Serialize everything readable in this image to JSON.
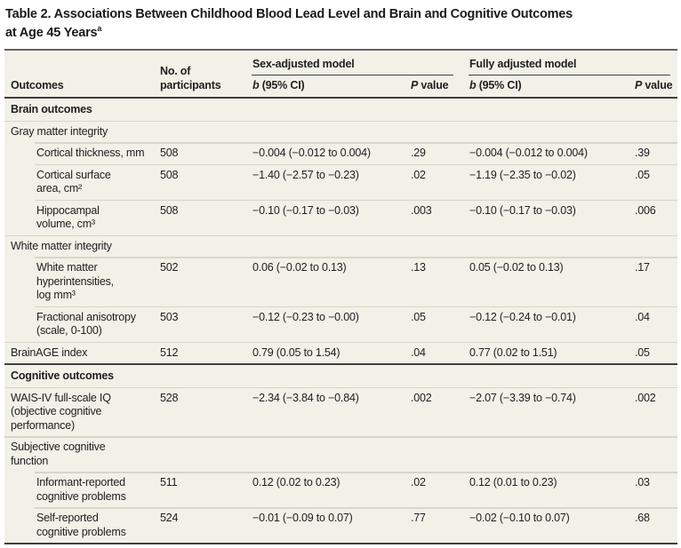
{
  "title": {
    "line1": "Table 2. Associations Between Childhood Blood Lead Level and Brain and Cognitive Outcomes",
    "line2": "at Age 45 Years",
    "superscript": "a"
  },
  "colors": {
    "table_background": "#f2f1e8",
    "dark_rule": "#3f3f3f",
    "top_rule": "#636363",
    "light_rule": "#d7d6cd",
    "text": "#202020"
  },
  "header": {
    "outcomes": "Outcomes",
    "participants": "No. of\nparticipants",
    "group1": "Sex-adjusted model",
    "group2": "Fully adjusted model",
    "b_italic": "b",
    "b_rest": " (95% CI)",
    "p_italic": "P",
    "p_rest": " value"
  },
  "rows": [
    {
      "type": "section",
      "label": "Brain outcomes"
    },
    {
      "type": "subsection",
      "label": "Gray matter integrity"
    },
    {
      "type": "data",
      "indent": true,
      "label": "Cortical thickness, mm",
      "n": "508",
      "b1": "−0.004 (−0.012 to 0.004)",
      "p1": ".29",
      "b2": "−0.004 (−0.012 to 0.004)",
      "p2": ".39"
    },
    {
      "type": "data",
      "indent": true,
      "label": "Cortical surface\narea, cm²",
      "n": "508",
      "b1": "−1.40 (−2.57 to −0.23)",
      "p1": ".02",
      "b2": "−1.19 (−2.35 to −0.02)",
      "p2": ".05"
    },
    {
      "type": "data",
      "indent": true,
      "label": "Hippocampal\nvolume, cm³",
      "n": "508",
      "b1": "−0.10 (−0.17 to −0.03)",
      "p1": ".003",
      "b2": "−0.10 (−0.17 to −0.03)",
      "p2": ".006"
    },
    {
      "type": "subsection",
      "label": "White matter integrity"
    },
    {
      "type": "data",
      "indent": true,
      "label": "White matter\nhyperintensities,\nlog mm³",
      "n": "502",
      "b1": "0.06 (−0.02 to 0.13)",
      "p1": ".13",
      "b2": "0.05 (−0.02 to 0.13)",
      "p2": ".17"
    },
    {
      "type": "data",
      "indent": true,
      "label": "Fractional anisotropy\n(scale, 0-100)",
      "n": "503",
      "b1": "−0.12 (−0.23 to −0.00)",
      "p1": ".05",
      "b2": "−0.12 (−0.24 to −0.01)",
      "p2": ".04"
    },
    {
      "type": "data",
      "indent": false,
      "label": "BrainAGE index",
      "n": "512",
      "b1": "0.79 (0.05 to 1.54)",
      "p1": ".04",
      "b2": "0.77 (0.02 to 1.51)",
      "p2": ".05"
    },
    {
      "type": "section",
      "label": "Cognitive outcomes",
      "divider_above": true
    },
    {
      "type": "data",
      "indent": false,
      "label": "WAIS-IV full-scale IQ\n(objective cognitive\nperformance)",
      "n": "528",
      "b1": "−2.34 (−3.84 to −0.84)",
      "p1": ".002",
      "b2": "−2.07 (−3.39 to −0.74)",
      "p2": ".002"
    },
    {
      "type": "subsection",
      "label": "Subjective cognitive\nfunction"
    },
    {
      "type": "data",
      "indent": true,
      "label": "Informant-reported\ncognitive problems",
      "n": "511",
      "b1": "0.12 (0.02 to 0.23)",
      "p1": ".02",
      "b2": "0.12 (0.01 to 0.23)",
      "p2": ".03"
    },
    {
      "type": "data",
      "indent": true,
      "label": "Self-reported\ncognitive problems",
      "n": "524",
      "b1": "−0.01 (−0.09 to 0.07)",
      "p1": ".77",
      "b2": "−0.02 (−0.10 to 0.07)",
      "p2": ".68"
    }
  ]
}
